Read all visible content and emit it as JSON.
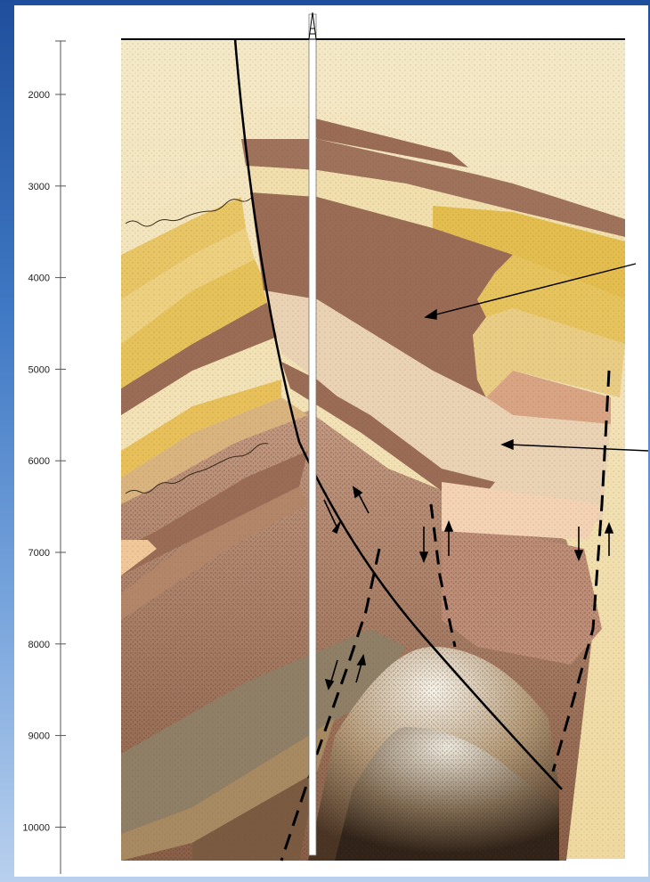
{
  "depth_axis": {
    "ticks": [
      "2000",
      "3000",
      "4000",
      "5000",
      "6000",
      "7000",
      "8000",
      "9000",
      "10000"
    ]
  },
  "colors": {
    "background": "#2c5fae",
    "shale": "#9a6c55",
    "sandstone_yellow": "#e3bd4e",
    "sandstone_light": "#f1dfae",
    "fault_line": "#000000"
  },
  "icons": [
    "derrick-icon"
  ]
}
